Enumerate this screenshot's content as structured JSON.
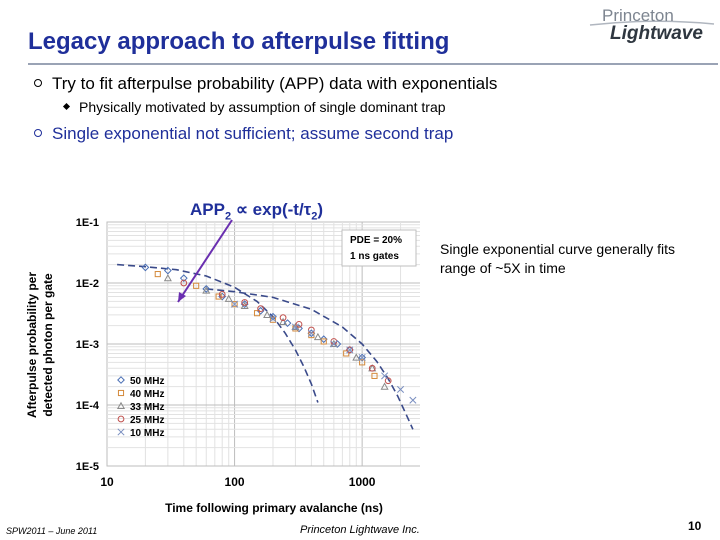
{
  "slide": {
    "title": "Legacy approach to afterpulse fitting",
    "logo": {
      "top": "Princeton",
      "bottom": "Lightwave"
    },
    "bullets": [
      "Try to fit afterpulse probability (APP) data with exponentials",
      "Physically motivated by assumption of single dominant trap",
      "Single exponential not sufficient; assume second trap"
    ],
    "equation": {
      "lhs": "APP",
      "sub": "2",
      "rhs": " ∝ exp(-t/τ",
      "sub2": "2",
      "tail": ")"
    },
    "note": "Single exponential curve generally fits range of ~5X in time",
    "footer_left": "SPW2011 – June 2011",
    "footer_mid": "Princeton Lightwave Inc.",
    "page_number": "10"
  },
  "colors": {
    "title": "#1f2f9a",
    "arrow": "#6a2fb0",
    "fit_line": "#3a4a8a",
    "series": [
      "#4a6fb5",
      "#d4893a",
      "#8a8a8a",
      "#c0504d",
      "#7a8fc0"
    ]
  },
  "chart_data": {
    "type": "scatter",
    "xscale": "log",
    "yscale": "log",
    "xlim": [
      10,
      3000
    ],
    "ylim": [
      1e-05,
      0.1
    ],
    "xticks": [
      "10",
      "100",
      "1000"
    ],
    "yticks": [
      "1E-1",
      "1E-2",
      "1E-3",
      "1E-4",
      "1E-5"
    ],
    "xlabel": "Time following  primary avalanche (ns)",
    "ylabel_line1": "Afterpulse probability per",
    "ylabel_line2": "detected photon  per gate",
    "grid": true,
    "info_box": [
      "PDE = 20%",
      "1 ns gates"
    ],
    "legend_position": "bottom-left",
    "series": [
      {
        "name": "50 MHz",
        "marker": "diamond",
        "x": [
          20,
          30,
          40,
          60,
          80,
          120,
          160,
          200,
          260,
          320,
          400,
          500,
          640,
          800,
          1000
        ],
        "y": [
          0.018,
          0.016,
          0.012,
          0.008,
          0.006,
          0.0045,
          0.0035,
          0.0028,
          0.0022,
          0.0018,
          0.0015,
          0.0012,
          0.001,
          0.0008,
          0.0006
        ]
      },
      {
        "name": "40 MHz",
        "marker": "square",
        "x": [
          25,
          50,
          75,
          100,
          150,
          200,
          300,
          400,
          500,
          750,
          1000,
          1250
        ],
        "y": [
          0.014,
          0.009,
          0.006,
          0.0045,
          0.0032,
          0.0025,
          0.0018,
          0.0014,
          0.0011,
          0.0007,
          0.0005,
          0.0003
        ]
      },
      {
        "name": "33 MHz",
        "marker": "triangle",
        "x": [
          30,
          60,
          90,
          120,
          180,
          240,
          300,
          450,
          600,
          900,
          1200,
          1500
        ],
        "y": [
          0.012,
          0.0075,
          0.0055,
          0.0042,
          0.003,
          0.0023,
          0.0019,
          0.0013,
          0.001,
          0.0006,
          0.0004,
          0.0002
        ]
      },
      {
        "name": "25 MHz",
        "marker": "circle",
        "x": [
          40,
          80,
          120,
          160,
          240,
          320,
          400,
          600,
          800,
          1200,
          1600
        ],
        "y": [
          0.01,
          0.0065,
          0.0048,
          0.0038,
          0.0027,
          0.0021,
          0.0017,
          0.0011,
          0.0008,
          0.0004,
          0.00025
        ]
      },
      {
        "name": "10 MHz",
        "marker": "cross",
        "x": [
          100,
          200,
          300,
          400,
          600,
          800,
          1000,
          1500,
          2000,
          2500
        ],
        "y": [
          0.0045,
          0.0026,
          0.0019,
          0.0015,
          0.001,
          0.0008,
          0.0006,
          0.0003,
          0.00018,
          0.00012
        ]
      }
    ],
    "fits": [
      {
        "x": [
          12,
          20,
          35,
          60,
          100,
          150,
          200,
          250,
          300,
          350,
          400,
          450
        ],
        "y": [
          0.02,
          0.0185,
          0.0165,
          0.013,
          0.0085,
          0.005,
          0.0028,
          0.0015,
          0.0008,
          0.00042,
          0.00022,
          0.00011
        ]
      },
      {
        "x": [
          60,
          100,
          200,
          400,
          700,
          1000,
          1300,
          1600,
          1900,
          2200,
          2500
        ],
        "y": [
          0.008,
          0.0072,
          0.0058,
          0.0037,
          0.0019,
          0.001,
          0.00052,
          0.00027,
          0.00014,
          7.2e-05,
          4e-05
        ]
      }
    ]
  }
}
